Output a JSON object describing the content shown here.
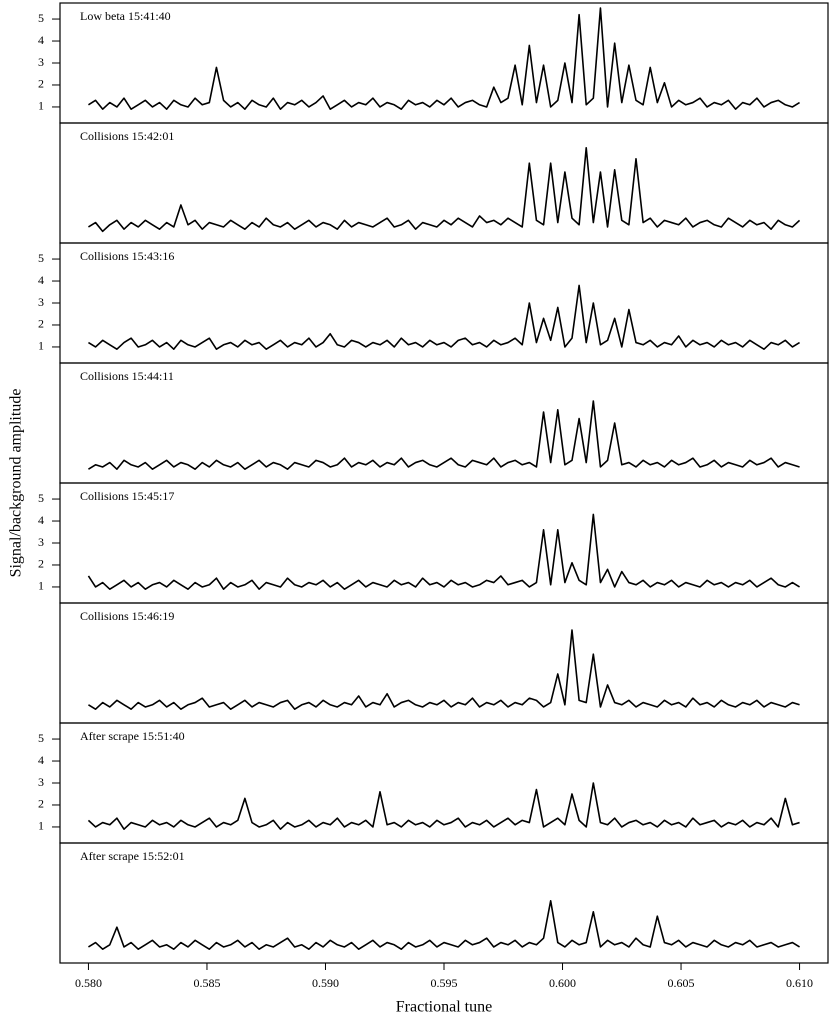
{
  "chart_data": {
    "type": "line",
    "xlabel": "Fractional tune",
    "ylabel": "Signal/background amplitude",
    "color": "#000000",
    "xlim": [
      0.5788,
      0.6112
    ],
    "ylim": [
      0.27,
      5.73
    ],
    "xticks": [
      {
        "value": 0.58,
        "label": "0.580"
      },
      0.585,
      {
        "value": 0.59,
        "label": "0.590"
      },
      0.595,
      {
        "value": 0.6,
        "label": "0.600"
      },
      0.605,
      {
        "value": 0.61,
        "label": "0.610"
      }
    ],
    "x": [
      0.58,
      0.5803,
      0.5806,
      0.5809,
      0.5812,
      0.5815,
      0.5818,
      0.5821,
      0.5824,
      0.5827,
      0.583,
      0.5833,
      0.5836,
      0.5839,
      0.5842,
      0.5845,
      0.5848,
      0.5851,
      0.5854,
      0.5857,
      0.586,
      0.5863,
      0.5866,
      0.5869,
      0.5872,
      0.5875,
      0.5878,
      0.5881,
      0.5884,
      0.5887,
      0.589,
      0.5893,
      0.5896,
      0.5899,
      0.5902,
      0.5905,
      0.5908,
      0.5911,
      0.5914,
      0.5917,
      0.592,
      0.5923,
      0.5926,
      0.5929,
      0.5932,
      0.5935,
      0.5938,
      0.5941,
      0.5944,
      0.5947,
      0.595,
      0.5953,
      0.5956,
      0.5959,
      0.5962,
      0.5965,
      0.5968,
      0.5971,
      0.5974,
      0.5977,
      0.598,
      0.5983,
      0.5986,
      0.5989,
      0.5992,
      0.5995,
      0.5998,
      0.6001,
      0.6004,
      0.6007,
      0.601,
      0.6013,
      0.6016,
      0.6019,
      0.6022,
      0.6025,
      0.6028,
      0.6031,
      0.6034,
      0.6037,
      0.604,
      0.6043,
      0.6046,
      0.6049,
      0.6052,
      0.6055,
      0.6058,
      0.6061,
      0.6064,
      0.6067,
      0.607,
      0.6073,
      0.6076,
      0.6079,
      0.6082,
      0.6085,
      0.6088,
      0.6091,
      0.6094,
      0.6097,
      0.61
    ],
    "series": [
      {
        "name": "Low beta 15:41:40",
        "yticks": [
          1,
          2,
          3,
          4,
          5
        ],
        "values": [
          1.1,
          1.3,
          0.9,
          1.2,
          1.0,
          1.4,
          0.9,
          1.1,
          1.3,
          1.0,
          1.2,
          0.9,
          1.3,
          1.1,
          1.0,
          1.4,
          1.1,
          1.2,
          2.8,
          1.3,
          1.0,
          1.2,
          0.9,
          1.3,
          1.1,
          1.0,
          1.4,
          0.9,
          1.2,
          1.1,
          1.3,
          1.0,
          1.2,
          1.5,
          0.9,
          1.1,
          1.3,
          1.0,
          1.2,
          1.1,
          1.4,
          1.0,
          1.2,
          1.1,
          0.9,
          1.3,
          1.1,
          1.2,
          1.0,
          1.3,
          1.1,
          1.4,
          1.0,
          1.2,
          1.3,
          1.1,
          1.0,
          1.9,
          1.2,
          1.4,
          2.9,
          1.1,
          3.8,
          1.2,
          2.9,
          1.0,
          1.3,
          3.0,
          1.2,
          5.2,
          1.1,
          1.4,
          5.5,
          1.0,
          3.9,
          1.2,
          2.9,
          1.3,
          1.1,
          2.8,
          1.2,
          2.1,
          1.0,
          1.3,
          1.1,
          1.2,
          1.4,
          1.0,
          1.2,
          1.1,
          1.3,
          0.9,
          1.2,
          1.1,
          1.4,
          1.0,
          1.2,
          1.3,
          1.1,
          1.0,
          1.2
        ]
      },
      {
        "name": "Collisions 15:42:01",
        "values": [
          1.0,
          1.2,
          0.8,
          1.1,
          1.3,
          0.9,
          1.2,
          1.0,
          1.3,
          1.1,
          0.9,
          1.2,
          1.0,
          2.0,
          1.1,
          1.3,
          0.9,
          1.2,
          1.1,
          1.0,
          1.3,
          1.1,
          0.9,
          1.2,
          1.0,
          1.4,
          1.1,
          1.0,
          1.2,
          0.9,
          1.1,
          1.3,
          1.0,
          1.2,
          1.1,
          0.9,
          1.3,
          1.0,
          1.2,
          1.1,
          1.0,
          1.2,
          1.4,
          1.0,
          1.1,
          1.3,
          0.9,
          1.2,
          1.1,
          1.0,
          1.3,
          1.1,
          1.4,
          1.2,
          1.0,
          1.5,
          1.2,
          1.3,
          1.1,
          1.4,
          1.2,
          1.0,
          3.9,
          1.3,
          1.1,
          3.9,
          1.2,
          3.5,
          1.4,
          1.1,
          4.6,
          1.2,
          3.5,
          1.0,
          3.6,
          1.3,
          1.1,
          4.1,
          1.2,
          1.4,
          1.0,
          1.3,
          1.2,
          1.1,
          1.4,
          1.0,
          1.2,
          1.3,
          1.1,
          1.0,
          1.4,
          1.2,
          1.0,
          1.3,
          1.1,
          1.2,
          0.9,
          1.3,
          1.1,
          1.0,
          1.3
        ]
      },
      {
        "name": "Collisions 15:43:16",
        "yticks": [
          1,
          2,
          3,
          4,
          5
        ],
        "values": [
          1.2,
          1.0,
          1.3,
          1.1,
          0.9,
          1.2,
          1.4,
          1.0,
          1.1,
          1.3,
          1.0,
          1.2,
          0.9,
          1.3,
          1.1,
          1.0,
          1.2,
          1.4,
          0.9,
          1.1,
          1.2,
          1.0,
          1.3,
          1.1,
          1.2,
          0.9,
          1.1,
          1.3,
          1.0,
          1.2,
          1.1,
          1.4,
          1.0,
          1.2,
          1.6,
          1.1,
          1.0,
          1.3,
          1.2,
          1.0,
          1.2,
          1.1,
          1.3,
          1.0,
          1.4,
          1.1,
          1.2,
          1.0,
          1.3,
          1.1,
          1.2,
          1.0,
          1.3,
          1.4,
          1.1,
          1.2,
          1.0,
          1.3,
          1.1,
          1.2,
          1.4,
          1.1,
          3.0,
          1.2,
          2.3,
          1.3,
          2.8,
          1.0,
          1.4,
          3.8,
          1.2,
          3.0,
          1.1,
          1.3,
          2.3,
          1.0,
          2.7,
          1.2,
          1.1,
          1.3,
          1.0,
          1.2,
          1.1,
          1.5,
          1.0,
          1.3,
          1.1,
          1.2,
          1.0,
          1.3,
          1.1,
          1.2,
          1.0,
          1.3,
          1.1,
          0.9,
          1.2,
          1.1,
          1.3,
          1.0,
          1.2
        ]
      },
      {
        "name": "Collisions 15:44:11",
        "values": [
          0.9,
          1.1,
          1.0,
          1.2,
          0.9,
          1.3,
          1.1,
          1.0,
          1.2,
          0.9,
          1.1,
          1.3,
          1.0,
          1.2,
          1.1,
          0.9,
          1.2,
          1.0,
          1.3,
          1.1,
          1.0,
          1.2,
          0.9,
          1.1,
          1.3,
          1.0,
          1.2,
          1.1,
          0.9,
          1.2,
          1.1,
          1.0,
          1.3,
          1.2,
          1.0,
          1.1,
          1.4,
          1.0,
          1.2,
          1.1,
          1.3,
          1.0,
          1.2,
          1.1,
          1.4,
          1.0,
          1.2,
          1.3,
          1.1,
          1.0,
          1.2,
          1.4,
          1.1,
          1.0,
          1.3,
          1.2,
          1.1,
          1.4,
          1.0,
          1.2,
          1.3,
          1.1,
          1.2,
          1.0,
          3.5,
          1.2,
          3.6,
          1.1,
          1.3,
          3.2,
          1.2,
          4.0,
          1.0,
          1.3,
          3.0,
          1.1,
          1.2,
          1.0,
          1.3,
          1.1,
          1.2,
          1.0,
          1.3,
          1.1,
          1.2,
          1.4,
          1.0,
          1.1,
          1.3,
          1.0,
          1.2,
          1.1,
          1.0,
          1.3,
          1.1,
          1.2,
          1.4,
          1.0,
          1.2,
          1.1,
          1.0
        ]
      },
      {
        "name": "Collisions 15:45:17",
        "yticks": [
          1,
          2,
          3,
          4,
          5
        ],
        "values": [
          1.5,
          1.0,
          1.2,
          0.9,
          1.1,
          1.3,
          1.0,
          1.2,
          0.9,
          1.1,
          1.2,
          1.0,
          1.3,
          1.1,
          0.9,
          1.2,
          1.0,
          1.1,
          1.4,
          0.9,
          1.2,
          1.0,
          1.1,
          1.3,
          0.9,
          1.2,
          1.1,
          1.0,
          1.4,
          1.1,
          1.0,
          1.2,
          1.1,
          1.3,
          1.0,
          1.2,
          0.9,
          1.1,
          1.3,
          1.0,
          1.2,
          1.1,
          1.0,
          1.3,
          1.1,
          1.2,
          1.0,
          1.4,
          1.1,
          1.2,
          1.0,
          1.3,
          1.1,
          1.2,
          1.0,
          1.1,
          1.3,
          1.2,
          1.5,
          1.1,
          1.2,
          1.3,
          1.0,
          1.2,
          3.6,
          1.1,
          3.6,
          1.2,
          2.1,
          1.3,
          1.1,
          4.3,
          1.2,
          1.8,
          1.0,
          1.7,
          1.2,
          1.1,
          1.3,
          1.0,
          1.2,
          1.1,
          1.3,
          1.0,
          1.2,
          1.1,
          1.0,
          1.3,
          1.1,
          1.2,
          1.0,
          1.2,
          1.1,
          1.3,
          1.0,
          1.2,
          1.4,
          1.1,
          1.0,
          1.2,
          1.0
        ]
      },
      {
        "name": "Collisions 15:46:19",
        "values": [
          1.1,
          0.9,
          1.2,
          1.0,
          1.3,
          1.1,
          0.9,
          1.2,
          1.0,
          1.1,
          1.3,
          1.0,
          1.2,
          0.9,
          1.1,
          1.2,
          1.4,
          1.0,
          1.1,
          1.2,
          0.9,
          1.1,
          1.3,
          1.0,
          1.2,
          1.1,
          1.0,
          1.2,
          1.3,
          0.9,
          1.1,
          1.2,
          1.0,
          1.3,
          1.1,
          1.0,
          1.2,
          1.1,
          1.5,
          1.0,
          1.2,
          1.1,
          1.6,
          1.0,
          1.2,
          1.3,
          1.1,
          1.0,
          1.2,
          1.1,
          1.3,
          1.0,
          1.2,
          1.1,
          1.4,
          1.0,
          1.2,
          1.1,
          1.3,
          1.0,
          1.2,
          1.1,
          1.4,
          1.3,
          1.0,
          1.2,
          2.5,
          1.1,
          4.5,
          1.3,
          1.2,
          3.4,
          1.0,
          2.0,
          1.2,
          1.1,
          1.3,
          1.0,
          1.2,
          1.1,
          1.0,
          1.3,
          1.1,
          1.2,
          1.0,
          1.4,
          1.1,
          1.2,
          1.0,
          1.3,
          1.1,
          1.0,
          1.2,
          1.1,
          1.3,
          1.0,
          1.2,
          1.1,
          1.0,
          1.2,
          1.1
        ]
      },
      {
        "name": "After scrape 15:51:40",
        "yticks": [
          1,
          2,
          3,
          4,
          5
        ],
        "values": [
          1.3,
          1.0,
          1.2,
          1.1,
          1.4,
          0.9,
          1.2,
          1.1,
          1.0,
          1.3,
          1.1,
          1.2,
          1.0,
          1.3,
          1.1,
          1.0,
          1.2,
          1.4,
          1.0,
          1.2,
          1.1,
          1.3,
          2.3,
          1.2,
          1.0,
          1.1,
          1.3,
          0.9,
          1.2,
          1.0,
          1.1,
          1.3,
          1.0,
          1.2,
          1.1,
          1.4,
          1.0,
          1.2,
          1.1,
          1.3,
          1.0,
          2.6,
          1.1,
          1.2,
          1.0,
          1.3,
          1.1,
          1.2,
          1.0,
          1.3,
          1.1,
          1.2,
          1.4,
          1.0,
          1.2,
          1.1,
          1.3,
          1.0,
          1.2,
          1.4,
          1.1,
          1.3,
          1.2,
          2.7,
          1.0,
          1.2,
          1.4,
          1.1,
          2.5,
          1.3,
          1.0,
          3.0,
          1.2,
          1.1,
          1.4,
          1.0,
          1.2,
          1.3,
          1.1,
          1.2,
          1.0,
          1.3,
          1.1,
          1.2,
          1.0,
          1.4,
          1.1,
          1.2,
          1.3,
          1.0,
          1.2,
          1.1,
          1.3,
          1.0,
          1.2,
          1.1,
          1.4,
          1.0,
          2.3,
          1.1,
          1.2
        ]
      },
      {
        "name": "After scrape 15:52:01",
        "values": [
          1.0,
          1.2,
          0.9,
          1.1,
          1.9,
          1.0,
          1.2,
          0.9,
          1.1,
          1.3,
          1.0,
          1.1,
          0.9,
          1.2,
          1.0,
          1.3,
          1.1,
          0.9,
          1.2,
          1.0,
          1.1,
          1.3,
          1.0,
          1.2,
          0.9,
          1.1,
          1.0,
          1.2,
          1.4,
          1.0,
          1.1,
          0.9,
          1.2,
          1.0,
          1.3,
          1.1,
          1.0,
          1.2,
          0.9,
          1.1,
          1.3,
          1.0,
          1.2,
          1.1,
          0.9,
          1.2,
          1.0,
          1.1,
          1.3,
          1.0,
          1.2,
          1.1,
          1.0,
          1.3,
          1.1,
          1.2,
          1.4,
          1.0,
          1.2,
          1.1,
          1.3,
          1.0,
          1.2,
          1.1,
          1.4,
          3.1,
          1.2,
          1.0,
          1.3,
          1.1,
          1.2,
          2.6,
          1.0,
          1.3,
          1.1,
          1.2,
          1.0,
          1.4,
          1.1,
          1.0,
          2.4,
          1.2,
          1.1,
          1.3,
          1.0,
          1.2,
          1.1,
          1.0,
          1.3,
          1.1,
          1.0,
          1.2,
          1.1,
          1.3,
          1.0,
          1.1,
          1.2,
          1.0,
          1.1,
          1.2,
          1.0
        ]
      }
    ]
  }
}
